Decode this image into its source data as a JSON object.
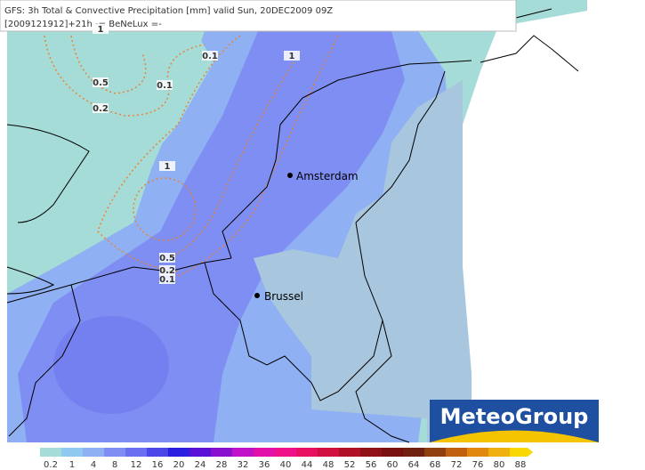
{
  "header": {
    "title": "GFS: 3h Total & Convective Precipitation [mm] valid Sun, 20DEC2009 09Z",
    "subtitle": "[2009121912]+21h -= BeNeLux =-"
  },
  "cities": [
    "Amsterdam",
    "Brussel"
  ],
  "contour_labels": [
    "1",
    "0.1",
    "1",
    "0.5",
    "0.1",
    "0.2",
    "1",
    "0.5",
    "0.2",
    "0.1"
  ],
  "logo": "MeteoGroup",
  "legend": {
    "labels": [
      0.2,
      1,
      4,
      8,
      12,
      16,
      20,
      24,
      28,
      32,
      36,
      40,
      44,
      48,
      52,
      56,
      60,
      64,
      68,
      72,
      76,
      80,
      88
    ],
    "colors": [
      "#a6dcd8",
      "#8fc8f0",
      "#8fb0f2",
      "#7e8ef2",
      "#6a6ef0",
      "#4a46e8",
      "#2a1ee0",
      "#5a10d8",
      "#8a10d0",
      "#c010c8",
      "#e010a8",
      "#f0108a",
      "#e81060",
      "#d01040",
      "#b01028",
      "#901018",
      "#781010",
      "#702010",
      "#904010",
      "#c06010",
      "#e08810",
      "#f0b010",
      "#f8d800"
    ]
  }
}
